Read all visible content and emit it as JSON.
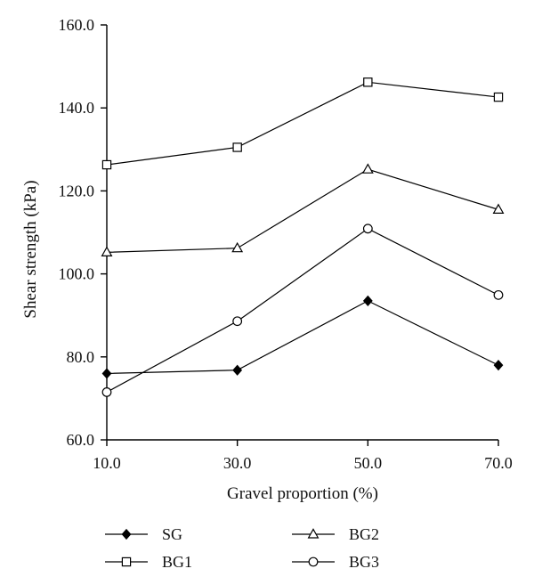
{
  "chart_data": {
    "type": "line",
    "xlabel": "Gravel proportion (%)",
    "ylabel": "Shear strength (kPa)",
    "x": [
      10.0,
      30.0,
      50.0,
      70.0
    ],
    "x_tick_labels": [
      "10.0",
      "30.0",
      "50.0",
      "70.0"
    ],
    "xlim": [
      10.0,
      70.0
    ],
    "ylim": [
      60.0,
      160.0
    ],
    "y_ticks": [
      60.0,
      80.0,
      100.0,
      120.0,
      140.0,
      160.0
    ],
    "y_tick_labels": [
      "60.0",
      "80.0",
      "100.0",
      "120.0",
      "140.0",
      "160.0"
    ],
    "grid": false,
    "legend_position": "bottom",
    "series": [
      {
        "name": "SG",
        "marker": "filled-diamond",
        "values": [
          76.0,
          76.8,
          93.5,
          78.0
        ]
      },
      {
        "name": "BG1",
        "marker": "open-square",
        "values": [
          126.3,
          130.5,
          146.2,
          142.6
        ]
      },
      {
        "name": "BG2",
        "marker": "open-triangle",
        "values": [
          105.2,
          106.2,
          125.2,
          115.5
        ]
      },
      {
        "name": "BG3",
        "marker": "open-circle",
        "values": [
          71.5,
          88.6,
          110.9,
          94.9
        ]
      }
    ]
  }
}
